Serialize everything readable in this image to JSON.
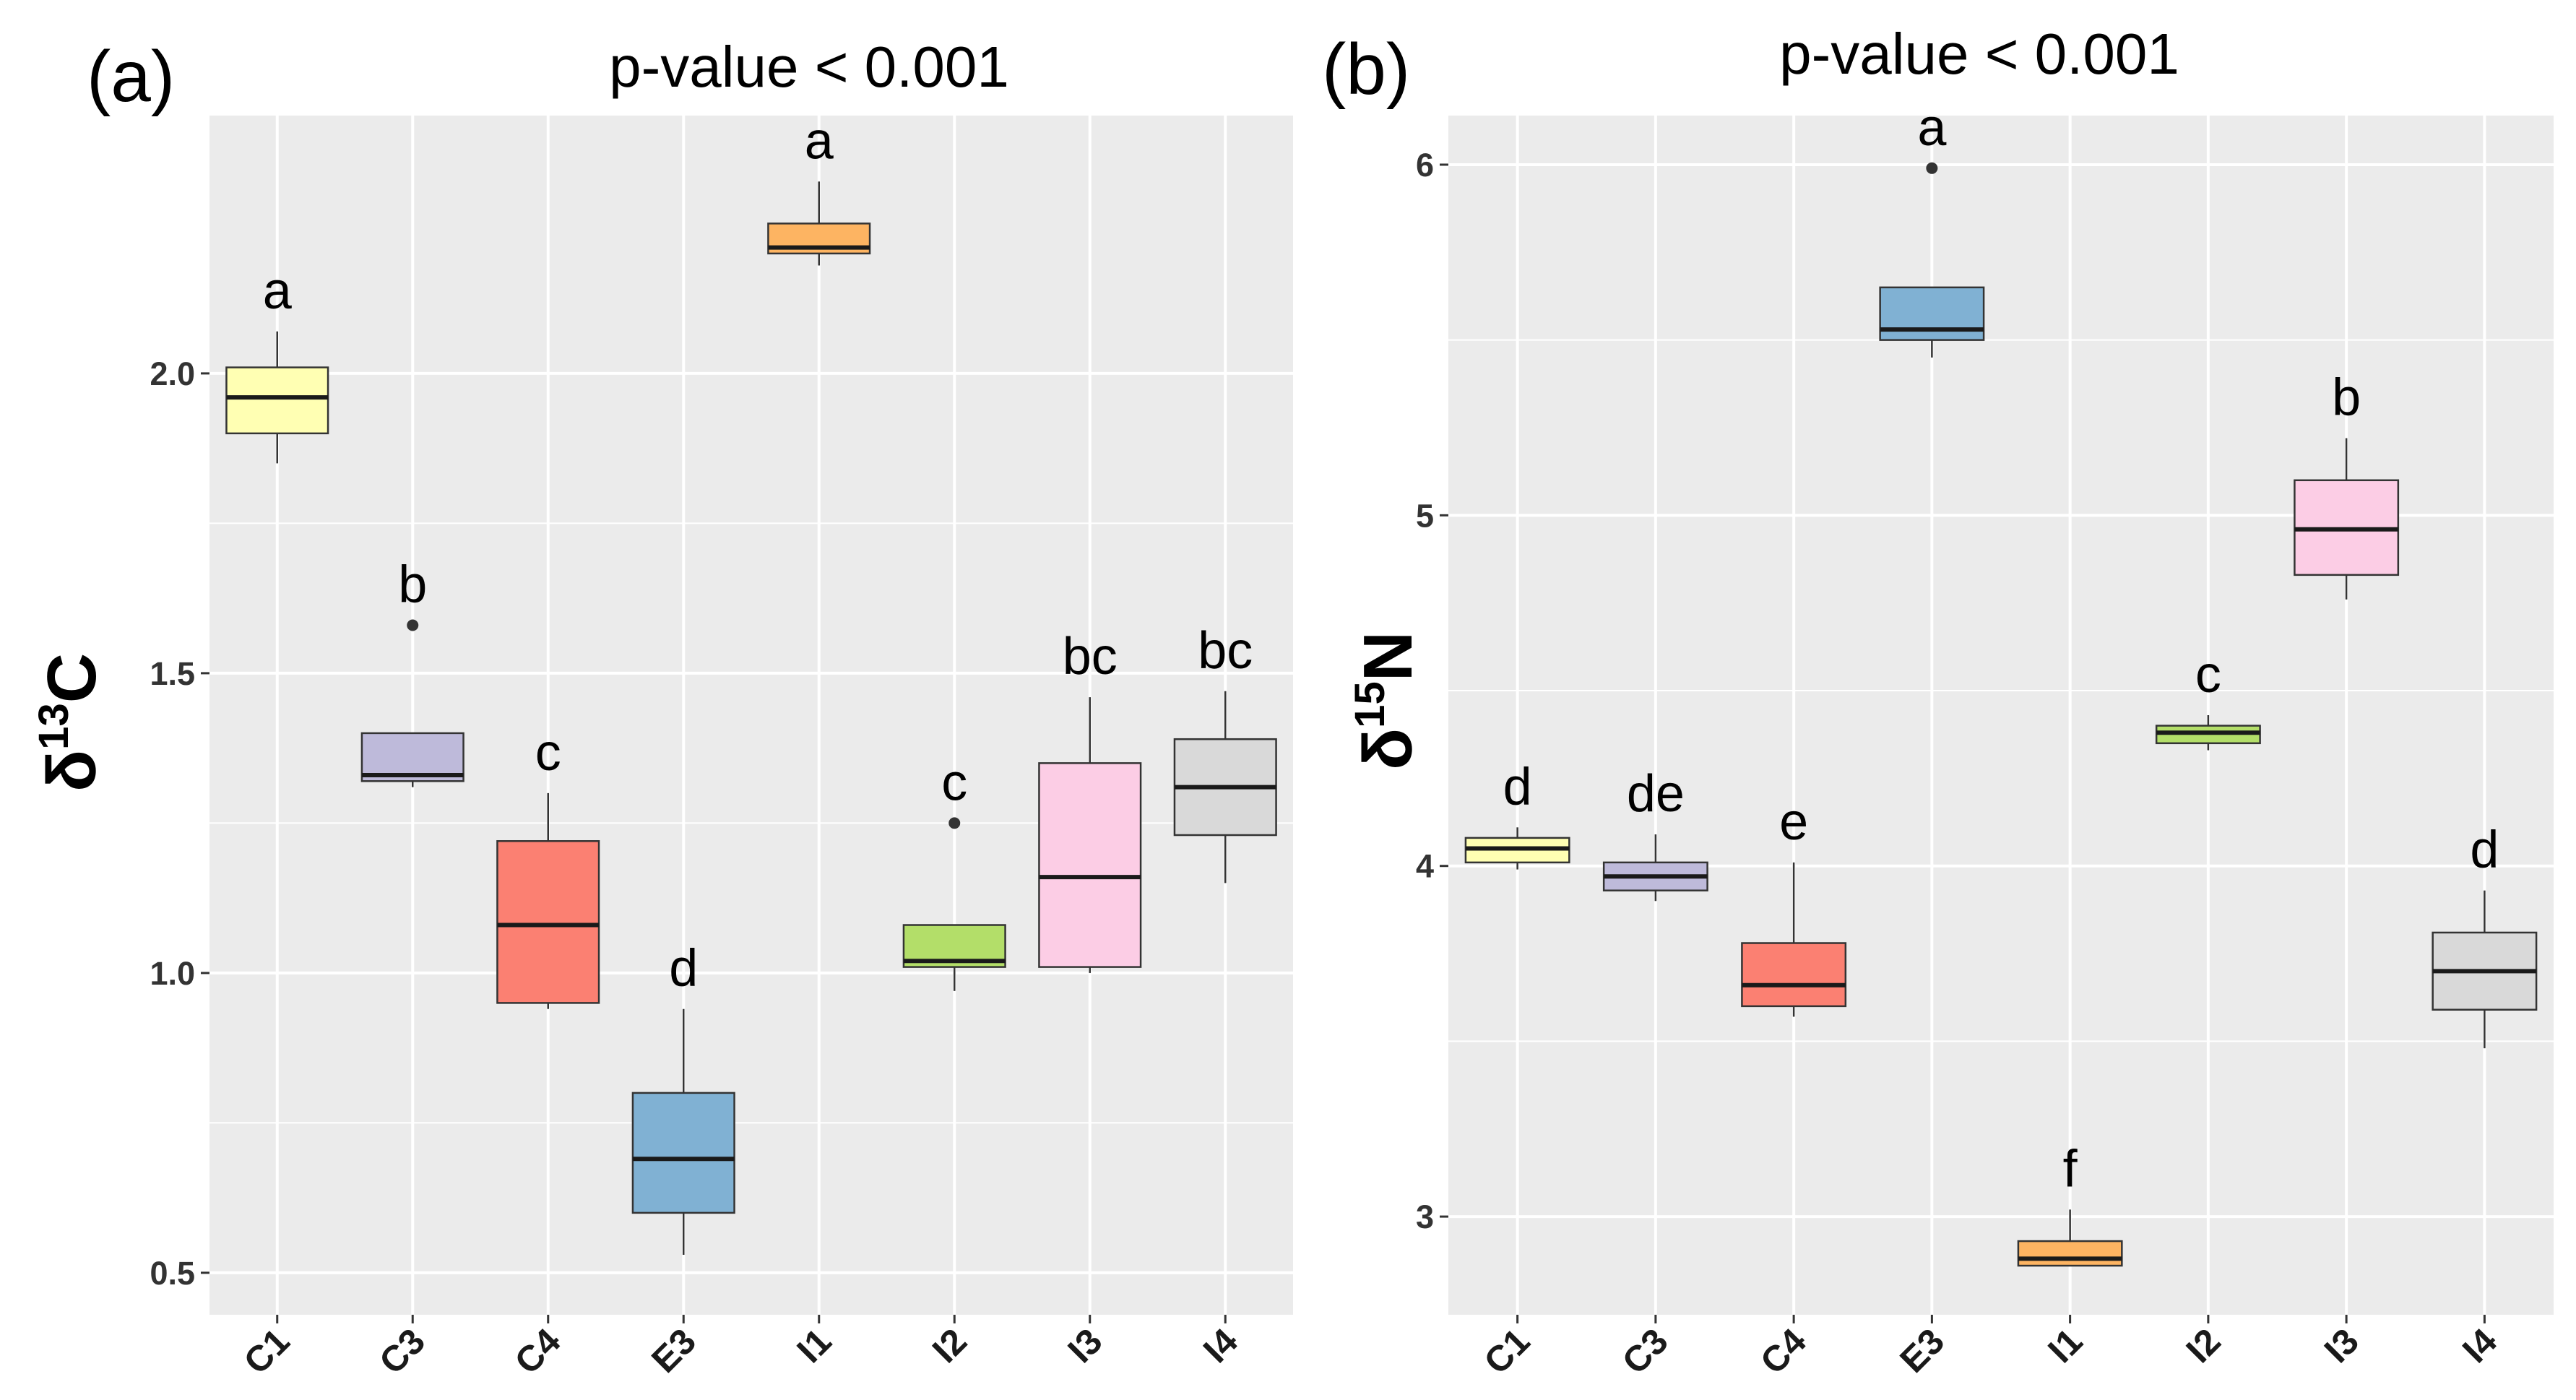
{
  "chart_data": [
    {
      "type": "boxplot",
      "panel_label": "(a)",
      "title": "p-value < 0.001",
      "xlabel": "",
      "ylabel": {
        "delta": "δ",
        "superscript": "13",
        "element": "C"
      },
      "ylim": [
        0.43,
        2.43
      ],
      "yticks": [
        0.5,
        1.0,
        1.5,
        2.0
      ],
      "ytick_labels": [
        "0.5",
        "1.0",
        "1.5",
        "2.0"
      ],
      "grid": true,
      "categories": [
        "C1",
        "C3",
        "C4",
        "E3",
        "I1",
        "I2",
        "I3",
        "I4"
      ],
      "boxes": [
        {
          "category": "C1",
          "min": 1.85,
          "q1": 1.9,
          "median": 1.96,
          "q3": 2.01,
          "max": 2.07,
          "outliers": [],
          "letter": "a",
          "color": "#FFFFB3"
        },
        {
          "category": "C3",
          "min": 1.31,
          "q1": 1.32,
          "median": 1.33,
          "q3": 1.4,
          "max": 1.4,
          "outliers": [
            1.58
          ],
          "letter": "b",
          "color": "#BEBADA"
        },
        {
          "category": "C4",
          "min": 0.94,
          "q1": 0.95,
          "median": 1.08,
          "q3": 1.22,
          "max": 1.3,
          "outliers": [],
          "letter": "c",
          "color": "#FB8072"
        },
        {
          "category": "E3",
          "min": 0.53,
          "q1": 0.6,
          "median": 0.69,
          "q3": 0.8,
          "max": 0.94,
          "outliers": [],
          "letter": "d",
          "color": "#80B1D3"
        },
        {
          "category": "I1",
          "min": 2.18,
          "q1": 2.2,
          "median": 2.21,
          "q3": 2.25,
          "max": 2.32,
          "outliers": [],
          "letter": "a",
          "color": "#FDB462"
        },
        {
          "category": "I2",
          "min": 0.97,
          "q1": 1.01,
          "median": 1.02,
          "q3": 1.08,
          "max": 1.08,
          "outliers": [
            1.25
          ],
          "letter": "c",
          "color": "#B3DE69"
        },
        {
          "category": "I3",
          "min": 1.0,
          "q1": 1.01,
          "median": 1.16,
          "q3": 1.35,
          "max": 1.46,
          "outliers": [],
          "letter": "bc",
          "color": "#FCCDE5"
        },
        {
          "category": "I4",
          "min": 1.15,
          "q1": 1.23,
          "median": 1.31,
          "q3": 1.39,
          "max": 1.47,
          "outliers": [],
          "letter": "bc",
          "color": "#D9D9D9"
        }
      ]
    },
    {
      "type": "boxplot",
      "panel_label": "(b)",
      "title": "p-value < 0.001",
      "xlabel": "",
      "ylabel": {
        "delta": "δ",
        "superscript": "15",
        "element": "N"
      },
      "ylim": [
        2.72,
        6.14
      ],
      "yticks": [
        3,
        4,
        5,
        6
      ],
      "ytick_labels": [
        "3",
        "4",
        "5",
        "6"
      ],
      "grid": true,
      "categories": [
        "C1",
        "C3",
        "C4",
        "E3",
        "I1",
        "I2",
        "I3",
        "I4"
      ],
      "boxes": [
        {
          "category": "C1",
          "min": 3.99,
          "q1": 4.01,
          "median": 4.05,
          "q3": 4.08,
          "max": 4.11,
          "outliers": [],
          "letter": "d",
          "color": "#FFFFB3"
        },
        {
          "category": "C3",
          "min": 3.9,
          "q1": 3.93,
          "median": 3.97,
          "q3": 4.01,
          "max": 4.09,
          "outliers": [],
          "letter": "de",
          "color": "#BEBADA"
        },
        {
          "category": "C4",
          "min": 3.57,
          "q1": 3.6,
          "median": 3.66,
          "q3": 3.78,
          "max": 4.01,
          "outliers": [],
          "letter": "e",
          "color": "#FB8072"
        },
        {
          "category": "E3",
          "min": 5.45,
          "q1": 5.5,
          "median": 5.53,
          "q3": 5.65,
          "max": 5.65,
          "outliers": [
            5.99
          ],
          "letter": "a",
          "color": "#80B1D3"
        },
        {
          "category": "I1",
          "min": 2.86,
          "q1": 2.86,
          "median": 2.88,
          "q3": 2.93,
          "max": 3.02,
          "outliers": [],
          "letter": "f",
          "color": "#FDB462"
        },
        {
          "category": "I2",
          "min": 4.33,
          "q1": 4.35,
          "median": 4.38,
          "q3": 4.4,
          "max": 4.43,
          "outliers": [],
          "letter": "c",
          "color": "#B3DE69"
        },
        {
          "category": "I3",
          "min": 4.76,
          "q1": 4.83,
          "median": 4.96,
          "q3": 5.1,
          "max": 5.22,
          "outliers": [],
          "letter": "b",
          "color": "#FCCDE5"
        },
        {
          "category": "I4",
          "min": 3.48,
          "q1": 3.59,
          "median": 3.7,
          "q3": 3.81,
          "max": 3.93,
          "outliers": [],
          "letter": "d",
          "color": "#D9D9D9"
        }
      ]
    }
  ],
  "style": {
    "panel_background": "#EBEBEB",
    "grid_color": "#FFFFFF",
    "box_outline": "#333333",
    "median_color": "#1A1A1A",
    "whisker_color": "#333333",
    "outlier_color": "#333333",
    "tick_color": "#333333"
  }
}
